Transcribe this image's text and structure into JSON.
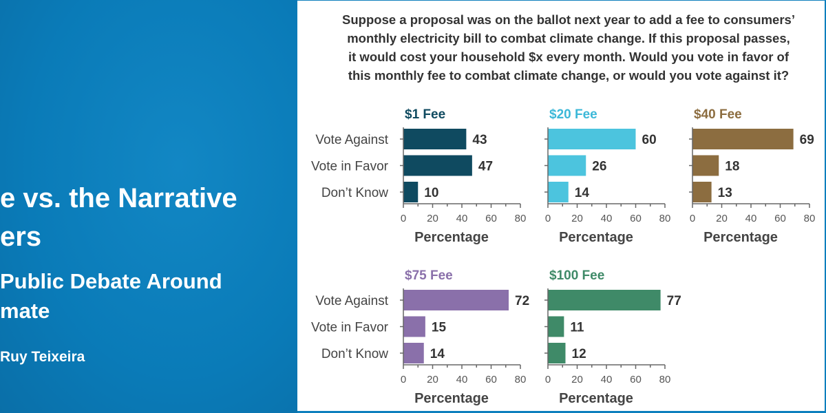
{
  "left_panel": {
    "title_line1": "e vs. the Narrative",
    "title_line2": "ers",
    "subtitle_line1": "Public Debate Around",
    "subtitle_line2": "mate",
    "author": "Ruy Teixeira",
    "background_color": "#0a7bb8"
  },
  "question": "Suppose a proposal was on the ballot next year to add a fee to consumers' monthly electricity bill to combat climate change. If this proposal passes, it would cost your household $x every month. Would you vote in favor of this monthly fee to combat climate change, or would you vote against it?",
  "question_lines": [
    "Suppose a proposal was on the ballot next year to add a fee to consumers’",
    "monthly electricity bill to combat climate change. If this proposal passes,",
    "it would cost your household $x every month. Would you vote in favor of",
    "this monthly fee to combat climate change, or would you vote against it?"
  ],
  "chart_data": [
    {
      "type": "bar",
      "title": "$1 Fee",
      "color": "#0f4a60",
      "title_color": "#0f4a60",
      "categories": [
        "Vote Against",
        "Vote in Favor",
        "Don’t Know"
      ],
      "values": [
        43,
        47,
        10
      ],
      "xlabel": "Percentage",
      "xlim": [
        0,
        80
      ],
      "xticks": [
        0,
        20,
        40,
        60,
        80
      ]
    },
    {
      "type": "bar",
      "title": "$20 Fee",
      "color": "#4cc4de",
      "title_color": "#3cb8d8",
      "categories": [
        "Vote Against",
        "Vote in Favor",
        "Don’t Know"
      ],
      "values": [
        60,
        26,
        14
      ],
      "xlabel": "Percentage",
      "xlim": [
        0,
        80
      ],
      "xticks": [
        0,
        20,
        40,
        60,
        80
      ]
    },
    {
      "type": "bar",
      "title": "$40 Fee",
      "color": "#8c6d40",
      "title_color": "#8c6d40",
      "categories": [
        "Vote Against",
        "Vote in Favor",
        "Don’t Know"
      ],
      "values": [
        69,
        18,
        13
      ],
      "xlabel": "Percentage",
      "xlim": [
        0,
        80
      ],
      "xticks": [
        0,
        20,
        40,
        60,
        80
      ]
    },
    {
      "type": "bar",
      "title": "$75 Fee",
      "color": "#8a70aa",
      "title_color": "#8a70aa",
      "categories": [
        "Vote Against",
        "Vote in Favor",
        "Don’t Know"
      ],
      "values": [
        72,
        15,
        14
      ],
      "xlabel": "Percentage",
      "xlim": [
        0,
        80
      ],
      "xticks": [
        0,
        20,
        40,
        60,
        80
      ]
    },
    {
      "type": "bar",
      "title": "$100 Fee",
      "color": "#3f8a68",
      "title_color": "#3f8a68",
      "categories": [
        "Vote Against",
        "Vote in Favor",
        "Don’t Know"
      ],
      "values": [
        77,
        11,
        12
      ],
      "xlabel": "Percentage",
      "xlim": [
        0,
        80
      ],
      "xticks": [
        0,
        20,
        40,
        60,
        80
      ]
    }
  ]
}
